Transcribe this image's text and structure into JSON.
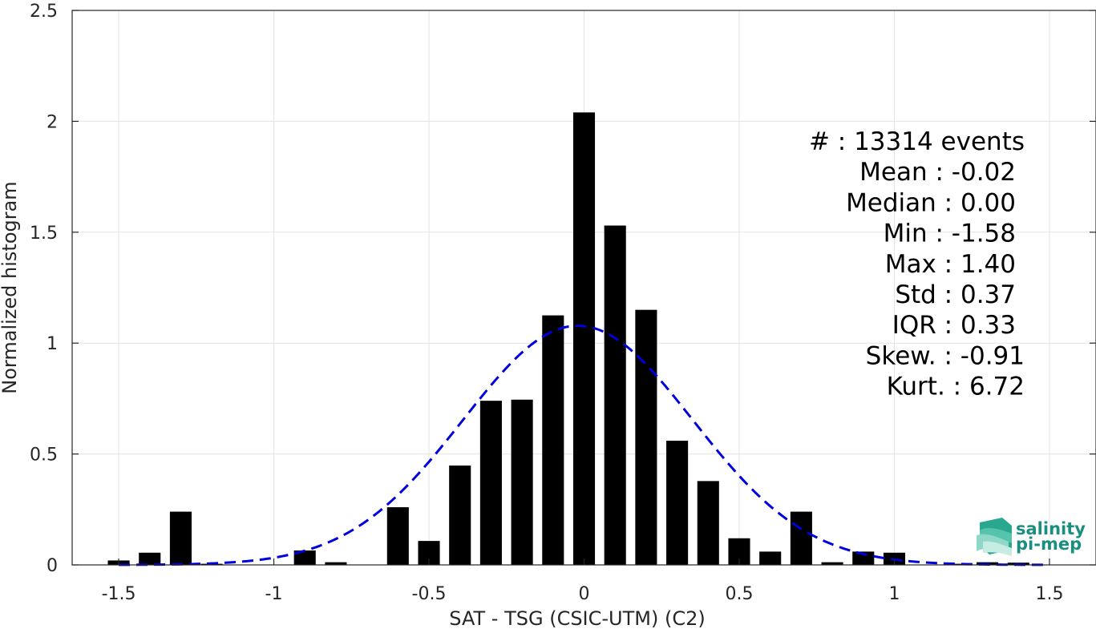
{
  "chart_data": {
    "type": "bar",
    "xlabel": "SAT - TSG (CSIC-UTM) (C2)",
    "ylabel": "Normalized histogram",
    "xlim": [
      -1.65,
      1.65
    ],
    "ylim": [
      0,
      2.5
    ],
    "xticks": [
      -1.5,
      -1,
      -0.5,
      0,
      0.5,
      1,
      1.5
    ],
    "xtick_labels": [
      "-1.5",
      "-1",
      "-0.5",
      "0",
      "0.5",
      "1",
      "1.5"
    ],
    "yticks": [
      0,
      0.5,
      1,
      1.5,
      2,
      2.5
    ],
    "ytick_labels": [
      "0",
      "0.5",
      "1",
      "1.5",
      "2",
      "2.5"
    ],
    "grid": true,
    "bin_width": 0.1,
    "bar_width": 0.07,
    "bars": [
      {
        "x": -1.5,
        "y": 0.02
      },
      {
        "x": -1.4,
        "y": 0.055
      },
      {
        "x": -1.3,
        "y": 0.24
      },
      {
        "x": -1.2,
        "y": 0.005
      },
      {
        "x": -1.1,
        "y": 0.0
      },
      {
        "x": -1.0,
        "y": 0.0
      },
      {
        "x": -0.9,
        "y": 0.065
      },
      {
        "x": -0.8,
        "y": 0.012
      },
      {
        "x": -0.7,
        "y": 0.0
      },
      {
        "x": -0.6,
        "y": 0.26
      },
      {
        "x": -0.5,
        "y": 0.108
      },
      {
        "x": -0.4,
        "y": 0.448
      },
      {
        "x": -0.3,
        "y": 0.74
      },
      {
        "x": -0.2,
        "y": 0.745
      },
      {
        "x": -0.1,
        "y": 1.125
      },
      {
        "x": 0.0,
        "y": 2.04
      },
      {
        "x": 0.1,
        "y": 1.53
      },
      {
        "x": 0.2,
        "y": 1.15
      },
      {
        "x": 0.3,
        "y": 0.56
      },
      {
        "x": 0.4,
        "y": 0.378
      },
      {
        "x": 0.5,
        "y": 0.12
      },
      {
        "x": 0.6,
        "y": 0.06
      },
      {
        "x": 0.7,
        "y": 0.24
      },
      {
        "x": 0.8,
        "y": 0.012
      },
      {
        "x": 0.9,
        "y": 0.06
      },
      {
        "x": 1.0,
        "y": 0.055
      },
      {
        "x": 1.1,
        "y": 0.0
      },
      {
        "x": 1.2,
        "y": 0.005
      },
      {
        "x": 1.3,
        "y": 0.012
      },
      {
        "x": 1.4,
        "y": 0.01
      }
    ],
    "bar_color": "#000000",
    "normal_fit": {
      "mean": -0.02,
      "std": 0.37,
      "color": "#0000dd",
      "style": "dashed",
      "x_range": [
        -1.5,
        1.5
      ]
    },
    "annotations": [
      "#  : 13314 events",
      "Mean : -0.02",
      "Median : 0.00",
      "Min : -1.58",
      "Max : 1.40",
      "Std : 0.37",
      "IQR : 0.33",
      "Skew. : -0.91",
      "Kurt. : 6.72"
    ]
  },
  "logo": {
    "line1": "salinity",
    "line2": "pi-mep",
    "color": "#1a8f7f"
  }
}
